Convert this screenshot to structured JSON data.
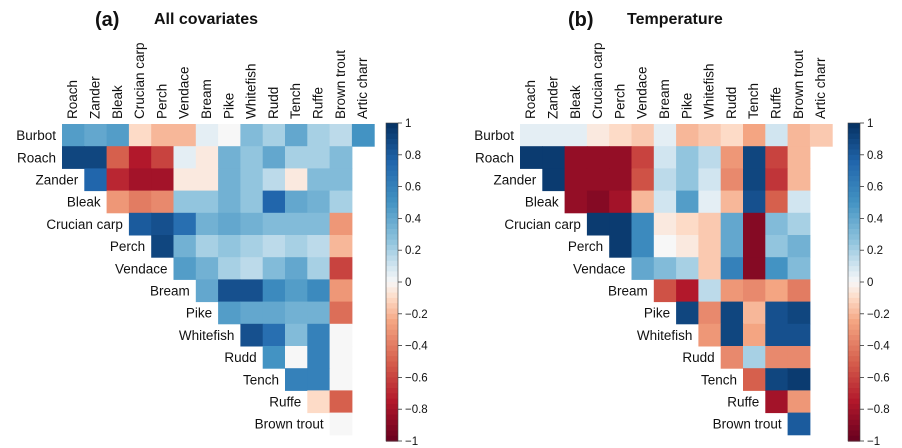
{
  "chart_data": [
    {
      "type": "heatmap",
      "panel": "(a)",
      "title": "All covariates",
      "rows": [
        "Burbot",
        "Roach",
        "Zander",
        "Bleak",
        "Crucian carp",
        "Perch",
        "Vendace",
        "Bream",
        "Pike",
        "Whitefish",
        "Rudd",
        "Tench",
        "Ruffe",
        "Brown trout"
      ],
      "columns": [
        "Roach",
        "Zander",
        "Bleak",
        "Crucian carp",
        "Perch",
        "Vendace",
        "Bream",
        "Pike",
        "Whitefish",
        "Rudd",
        "Tench",
        "Ruffe",
        "Brown trout",
        "Artic charr"
      ],
      "values": [
        [
          0.45,
          0.4,
          0.45,
          -0.1,
          -0.2,
          -0.2,
          0.05,
          0.0,
          0.3,
          0.2,
          0.4,
          0.2,
          0.15,
          0.5
        ],
        [
          0.9,
          0.9,
          -0.5,
          -0.75,
          -0.6,
          0.05,
          -0.05,
          0.35,
          0.25,
          0.4,
          0.2,
          0.2,
          0.3
        ],
        [
          0.75,
          -0.7,
          -0.8,
          -0.8,
          -0.05,
          -0.05,
          0.35,
          0.25,
          0.15,
          -0.05,
          0.3,
          0.3
        ],
        [
          -0.3,
          -0.4,
          -0.35,
          0.25,
          0.25,
          0.35,
          0.25,
          0.75,
          0.4,
          0.35,
          0.2
        ],
        [
          0.8,
          0.85,
          0.7,
          0.35,
          0.4,
          0.35,
          0.3,
          0.3,
          0.3,
          -0.3
        ],
        [
          0.9,
          0.35,
          0.2,
          0.25,
          0.2,
          0.15,
          0.2,
          0.15,
          -0.2
        ],
        [
          0.45,
          0.35,
          0.2,
          0.15,
          0.3,
          0.4,
          0.2,
          -0.6
        ],
        [
          0.4,
          0.85,
          0.85,
          0.55,
          0.45,
          0.55,
          -0.3
        ],
        [
          0.45,
          0.4,
          0.4,
          0.35,
          0.35,
          -0.45
        ],
        [
          0.85,
          0.7,
          0.3,
          0.6,
          0.0
        ],
        [
          0.5,
          0.0,
          0.6,
          0.0
        ],
        [
          0.6,
          0.6,
          0.0
        ],
        [
          -0.1,
          -0.5
        ],
        [
          0.0
        ]
      ],
      "colorbar": {
        "min": -1,
        "max": 1,
        "ticks": [
          1,
          0.8,
          0.6,
          0.4,
          0.2,
          0,
          -0.2,
          -0.4,
          -0.6,
          -0.8,
          -1
        ]
      }
    },
    {
      "type": "heatmap",
      "panel": "(b)",
      "title": "Temperature",
      "rows": [
        "Burbot",
        "Roach",
        "Zander",
        "Bleak",
        "Crucian carp",
        "Perch",
        "Vendace",
        "Bream",
        "Pike",
        "Whitefish",
        "Rudd",
        "Tench",
        "Ruffe",
        "Brown trout"
      ],
      "columns": [
        "Roach",
        "Zander",
        "Bleak",
        "Crucian carp",
        "Perch",
        "Vendace",
        "Bream",
        "Pike",
        "Whitefish",
        "Rudd",
        "Tench",
        "Ruffe",
        "Brown trout",
        "Artic charr"
      ],
      "values": [
        [
          0.05,
          0.05,
          0.05,
          -0.05,
          -0.1,
          -0.15,
          0.05,
          -0.2,
          -0.15,
          -0.1,
          -0.25,
          0.1,
          -0.2,
          -0.15
        ],
        [
          0.95,
          0.95,
          -0.85,
          -0.85,
          -0.85,
          -0.6,
          0.1,
          0.25,
          0.15,
          -0.3,
          0.9,
          -0.6,
          -0.2
        ],
        [
          0.95,
          -0.85,
          -0.85,
          -0.85,
          -0.55,
          0.15,
          0.25,
          0.1,
          -0.35,
          0.9,
          -0.65,
          -0.2
        ],
        [
          -0.85,
          -0.9,
          -0.8,
          -0.2,
          0.1,
          0.45,
          0.05,
          -0.2,
          0.85,
          -0.5,
          0.1
        ],
        [
          0.95,
          0.95,
          0.55,
          -0.05,
          -0.1,
          -0.15,
          0.4,
          -0.9,
          0.3,
          0.2
        ],
        [
          0.95,
          0.55,
          0.0,
          -0.05,
          -0.15,
          0.4,
          -0.9,
          0.25,
          0.35
        ],
        [
          0.4,
          0.3,
          0.2,
          -0.15,
          0.6,
          -0.9,
          0.5,
          0.3
        ],
        [
          -0.55,
          -0.75,
          0.15,
          -0.3,
          -0.35,
          -0.25,
          -0.4
        ],
        [
          0.9,
          -0.35,
          0.9,
          -0.2,
          0.85,
          0.9
        ],
        [
          -0.3,
          0.9,
          -0.25,
          0.85,
          0.85
        ],
        [
          -0.35,
          0.2,
          -0.35,
          -0.35
        ],
        [
          -0.5,
          0.9,
          0.95
        ],
        [
          -0.8,
          -0.3
        ],
        [
          0.8
        ]
      ],
      "colorbar": {
        "min": -1,
        "max": 1,
        "ticks": [
          1,
          0.8,
          0.6,
          0.4,
          0.2,
          0,
          -0.2,
          -0.4,
          -0.6,
          -0.8,
          -1
        ]
      }
    }
  ]
}
